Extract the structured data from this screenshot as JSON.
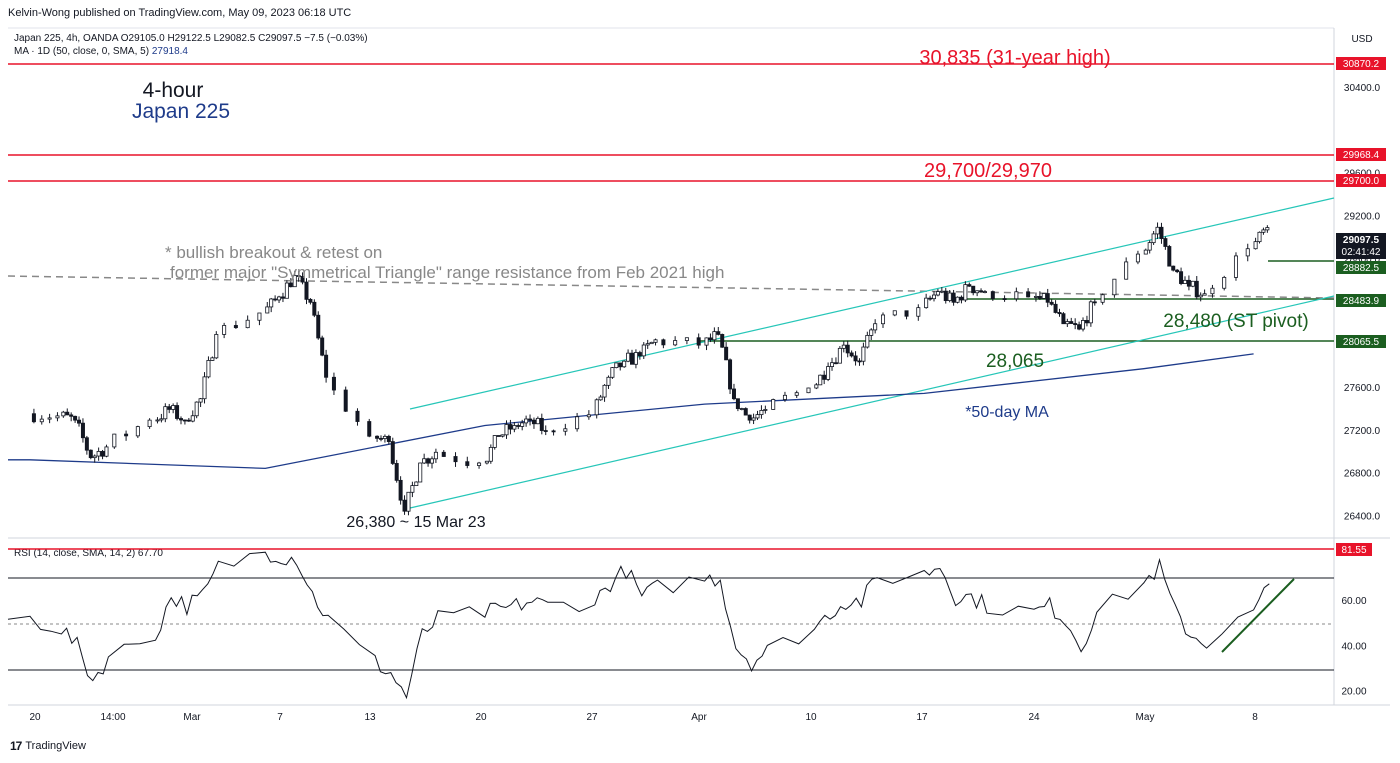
{
  "header": {
    "published": "Kelvin-Wong published on TradingView.com, May 09, 2023 06:18 UTC"
  },
  "legend": {
    "symbol_line": "Japan 225, 4h, OANDA  O29105.0  H29122.5  L29082.5  C29097.5  −7.5 (−0.03%)",
    "ma_line": "MA · 1D (50, close, 0, SMA, 5)",
    "ma_value": "27918.4",
    "rsi_line": "RSI (14, close, SMA, 14, 2)  67.70"
  },
  "currency": "USD",
  "footer": {
    "logo": "TradingView"
  },
  "annotations": {
    "timeframe": "4-hour",
    "instrument": "Japan 225",
    "high_label": "30,835 (31-year high)",
    "resistance_label": "29,700/29,970",
    "breakout_note_1": "* bullish breakout & retest on",
    "breakout_note_2": "former major \"Symmetrical Triangle\" range resistance from Feb 2021 high",
    "low_label": "26,380 ~ 15 Mar 23",
    "support_label": "28,065",
    "pivot_label": "28,480 (ST pivot)",
    "ma_label": "*50-day MA"
  },
  "colors": {
    "resistance": "#e8132a",
    "support": "#1b5e20",
    "channel": "#26c6b8",
    "ma": "#1e3b8a",
    "breakout_note": "#888888",
    "candle": "#131722",
    "price_box": "#131722"
  },
  "price_axis": {
    "ticks": [
      "30400.0",
      "29600.0",
      "29200.0",
      "28800.0",
      "28400.0",
      "27600.0",
      "27200.0",
      "26800.0",
      "26400.0"
    ],
    "boxes": [
      {
        "value": "30870.2",
        "kind": "resistance"
      },
      {
        "value": "29968.4",
        "kind": "resistance"
      },
      {
        "value": "29700.0",
        "kind": "resistance"
      },
      {
        "value": "29097.5",
        "sub": "02:41:42",
        "kind": "price"
      },
      {
        "value": "28882.5",
        "kind": "support"
      },
      {
        "value": "28483.9",
        "kind": "support"
      },
      {
        "value": "28065.5",
        "kind": "support"
      }
    ]
  },
  "rsi_axis": {
    "ticks": [
      "60.00",
      "40.00",
      "20.00"
    ],
    "box": "81.55"
  },
  "time_axis": [
    "20",
    "14:00",
    "Mar",
    "7",
    "13",
    "20",
    "27",
    "Apr",
    "10",
    "17",
    "24",
    "May",
    "8"
  ],
  "chart_data": [
    {
      "type": "line",
      "title": "Japan 225, 4h, OANDA",
      "ylabel": "USD",
      "ylim": [
        26200,
        30960
      ],
      "x_range": [
        "2023-02-19",
        "2023-05-10"
      ],
      "series": [
        {
          "name": "Japan 225",
          "x": [
            "2023-02-19",
            "2023-02-21",
            "2023-02-22",
            "2023-02-23",
            "2023-02-24",
            "2023-02-27",
            "2023-02-28",
            "2023-03-01",
            "2023-03-02",
            "2023-03-03",
            "2023-03-06",
            "2023-03-07",
            "2023-03-08",
            "2023-03-09",
            "2023-03-10",
            "2023-03-13",
            "2023-03-14",
            "2023-03-15",
            "2023-03-16",
            "2023-03-17",
            "2023-03-20",
            "2023-03-21",
            "2023-03-22",
            "2023-03-23",
            "2023-03-24",
            "2023-03-27",
            "2023-03-28",
            "2023-03-29",
            "2023-03-30",
            "2023-03-31",
            "2023-04-03",
            "2023-04-04",
            "2023-04-05",
            "2023-04-06",
            "2023-04-07",
            "2023-04-10",
            "2023-04-11",
            "2023-04-12",
            "2023-04-13",
            "2023-04-14",
            "2023-04-17",
            "2023-04-18",
            "2023-04-19",
            "2023-04-20",
            "2023-04-21",
            "2023-04-24",
            "2023-04-25",
            "2023-04-26",
            "2023-04-27",
            "2023-04-28",
            "2023-05-01",
            "2023-05-02",
            "2023-05-03",
            "2023-05-04",
            "2023-05-05",
            "2023-05-08",
            "2023-05-09"
          ],
          "values": [
            27360,
            27340,
            27300,
            26950,
            27050,
            27300,
            27400,
            27300,
            27500,
            28100,
            28300,
            28450,
            28650,
            28400,
            27700,
            27150,
            27100,
            26450,
            26900,
            27000,
            26900,
            27150,
            27250,
            27300,
            27200,
            27350,
            27700,
            27850,
            27900,
            28050,
            28000,
            28100,
            27500,
            27300,
            27400,
            27600,
            27800,
            28000,
            27850,
            28200,
            28350,
            28500,
            28400,
            28550,
            28500,
            28450,
            28400,
            28200,
            28150,
            28400,
            28850,
            29100,
            28700,
            28550,
            28480,
            28900,
            29097.5
          ]
        },
        {
          "name": "MA · 1D (50, close, 0, SMA, 5)",
          "x": [
            "2023-02-19",
            "2023-03-06",
            "2023-03-20",
            "2023-04-03",
            "2023-04-17",
            "2023-05-01",
            "2023-05-08"
          ],
          "values": [
            26930,
            26850,
            27250,
            27450,
            27550,
            27780,
            27918.4
          ]
        }
      ],
      "levels": [
        {
          "label": "30,835 (31-year high)",
          "value": 30870.2
        },
        {
          "label": "29,700/29,970",
          "values": [
            29700.0,
            29968.4
          ]
        },
        {
          "label": "28,480 (ST pivot)",
          "value": 28483.9
        },
        {
          "label": "28,065",
          "value": 28065.5
        },
        {
          "value": 28882.5
        }
      ],
      "annotations": [
        "26,380 ~ 15 Mar 23",
        "*50-day MA"
      ]
    },
    {
      "type": "line",
      "title": "RSI (14, close, SMA, 14, 2)",
      "ylim": [
        14,
        88
      ],
      "series": [
        {
          "name": "RSI (14, close, SMA, 14, 2)",
          "x": [
            "2023-02-19",
            "2023-02-21",
            "2023-02-22",
            "2023-02-23",
            "2023-02-24",
            "2023-02-27",
            "2023-02-28",
            "2023-03-01",
            "2023-03-02",
            "2023-03-03",
            "2023-03-06",
            "2023-03-07",
            "2023-03-08",
            "2023-03-09",
            "2023-03-10",
            "2023-03-13",
            "2023-03-14",
            "2023-03-15",
            "2023-03-16",
            "2023-03-17",
            "2023-03-20",
            "2023-03-21",
            "2023-03-22",
            "2023-03-23",
            "2023-03-24",
            "2023-03-27",
            "2023-03-28",
            "2023-03-29",
            "2023-03-30",
            "2023-03-31",
            "2023-04-03",
            "2023-04-04",
            "2023-04-05",
            "2023-04-06",
            "2023-04-07",
            "2023-04-10",
            "2023-04-11",
            "2023-04-12",
            "2023-04-13",
            "2023-04-14",
            "2023-04-17",
            "2023-04-18",
            "2023-04-19",
            "2023-04-20",
            "2023-04-21",
            "2023-04-24",
            "2023-04-25",
            "2023-04-26",
            "2023-04-27",
            "2023-04-28",
            "2023-05-01",
            "2023-05-02",
            "2023-05-03",
            "2023-05-04",
            "2023-05-05",
            "2023-05-08",
            "2023-05-09"
          ],
          "values": [
            52,
            48,
            40,
            25,
            35,
            45,
            62,
            58,
            62,
            75,
            82,
            80,
            79,
            63,
            52,
            33,
            28,
            18,
            45,
            52,
            55,
            56,
            58,
            60,
            58,
            60,
            68,
            74,
            62,
            66,
            70,
            70,
            40,
            33,
            38,
            48,
            55,
            60,
            60,
            70,
            72,
            76,
            62,
            62,
            58,
            55,
            58,
            52,
            40,
            55,
            68,
            75,
            55,
            45,
            42,
            55,
            67.7
          ]
        }
      ],
      "levels": [
        {
          "value": 81.55
        },
        {
          "value": 70
        },
        {
          "value": 50
        },
        {
          "value": 30
        }
      ]
    }
  ]
}
